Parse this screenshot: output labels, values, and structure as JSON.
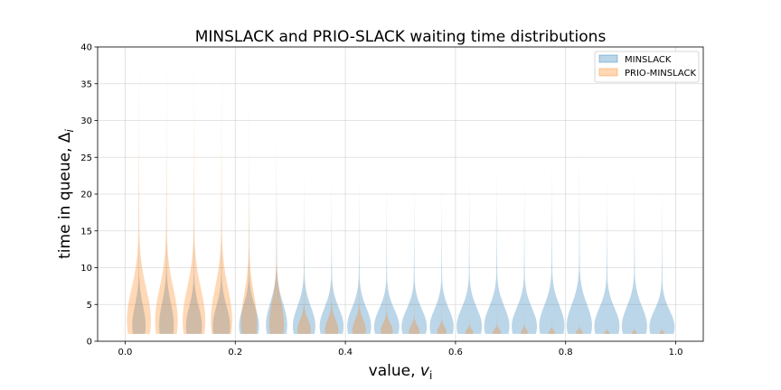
{
  "chart_data": {
    "type": "violin",
    "title": "MINSLACK and PRIO-SLACK waiting time distributions",
    "xlabel": "value, ",
    "xlabel_var": "v",
    "xlabel_sub": "i",
    "ylabel": "time in queue, Δ",
    "ylabel_sub": "i",
    "xlim": [
      -0.05,
      1.05
    ],
    "ylim": [
      0,
      40
    ],
    "xticks": [
      "0.0",
      "0.2",
      "0.4",
      "0.6",
      "0.8",
      "1.0"
    ],
    "yticks": [
      "0",
      "5",
      "10",
      "15",
      "20",
      "25",
      "30",
      "35",
      "40"
    ],
    "grid": true,
    "legend_position": "upper right",
    "x": [
      0.025,
      0.075,
      0.125,
      0.175,
      0.225,
      0.275,
      0.325,
      0.375,
      0.425,
      0.475,
      0.525,
      0.575,
      0.625,
      0.675,
      0.725,
      0.775,
      0.825,
      0.875,
      0.925,
      0.975
    ],
    "series": [
      {
        "name": "MINSLACK",
        "color": "#1f77b4",
        "max": [
          25,
          27,
          24,
          24,
          24,
          27,
          24,
          23,
          23,
          22,
          22,
          22,
          23,
          24,
          23,
          25,
          26,
          23,
          24,
          21
        ],
        "peak_width": [
          0.5,
          0.55,
          0.6,
          0.65,
          0.75,
          0.8,
          0.85,
          0.9,
          0.9,
          0.95,
          0.95,
          0.9,
          0.95,
          0.95,
          0.95,
          0.95,
          0.95,
          0.95,
          0.95,
          0.95
        ]
      },
      {
        "name": "PRIO-MINSLACK",
        "color": "#ff7f0e",
        "max": [
          40,
          40,
          40,
          40,
          35,
          29,
          13,
          13,
          13,
          10,
          8,
          7,
          5,
          5,
          5,
          4,
          4,
          3,
          3,
          3
        ],
        "peak_width": [
          0.9,
          0.85,
          0.85,
          0.8,
          0.6,
          0.55,
          0.5,
          0.5,
          0.5,
          0.45,
          0.4,
          0.35,
          0.3,
          0.3,
          0.25,
          0.25,
          0.25,
          0.2,
          0.2,
          0.2
        ]
      }
    ]
  }
}
